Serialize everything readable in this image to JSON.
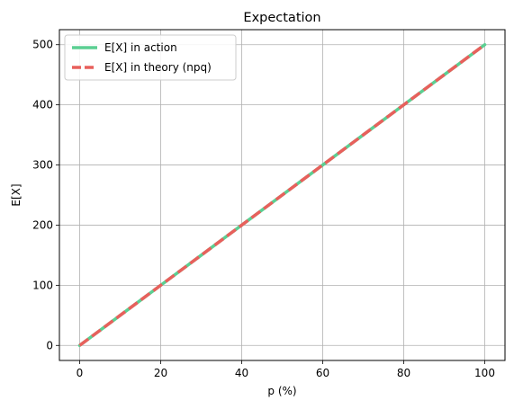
{
  "chart_data": {
    "type": "line",
    "title": "Expectation",
    "xlabel": "p (%)",
    "ylabel": "E[X]",
    "xlim": [
      -5,
      105
    ],
    "ylim": [
      -25,
      525
    ],
    "xticks": [
      0,
      20,
      40,
      60,
      80,
      100
    ],
    "yticks": [
      0,
      100,
      200,
      300,
      400,
      500
    ],
    "grid": true,
    "legend_position": "upper-left",
    "series": [
      {
        "name": "E[X] in action",
        "color": "#5bcf92",
        "style": "solid",
        "x": [
          0,
          10,
          20,
          30,
          40,
          50,
          60,
          70,
          80,
          90,
          100
        ],
        "y": [
          0,
          50,
          100,
          150,
          200,
          250,
          300,
          350,
          400,
          450,
          500
        ]
      },
      {
        "name": "E[X] in theory (npq)",
        "color": "#e8605c",
        "style": "dashed",
        "x": [
          0,
          10,
          20,
          30,
          40,
          50,
          60,
          70,
          80,
          90,
          100
        ],
        "y": [
          0,
          50,
          100,
          150,
          200,
          250,
          300,
          350,
          400,
          450,
          500
        ]
      }
    ]
  }
}
